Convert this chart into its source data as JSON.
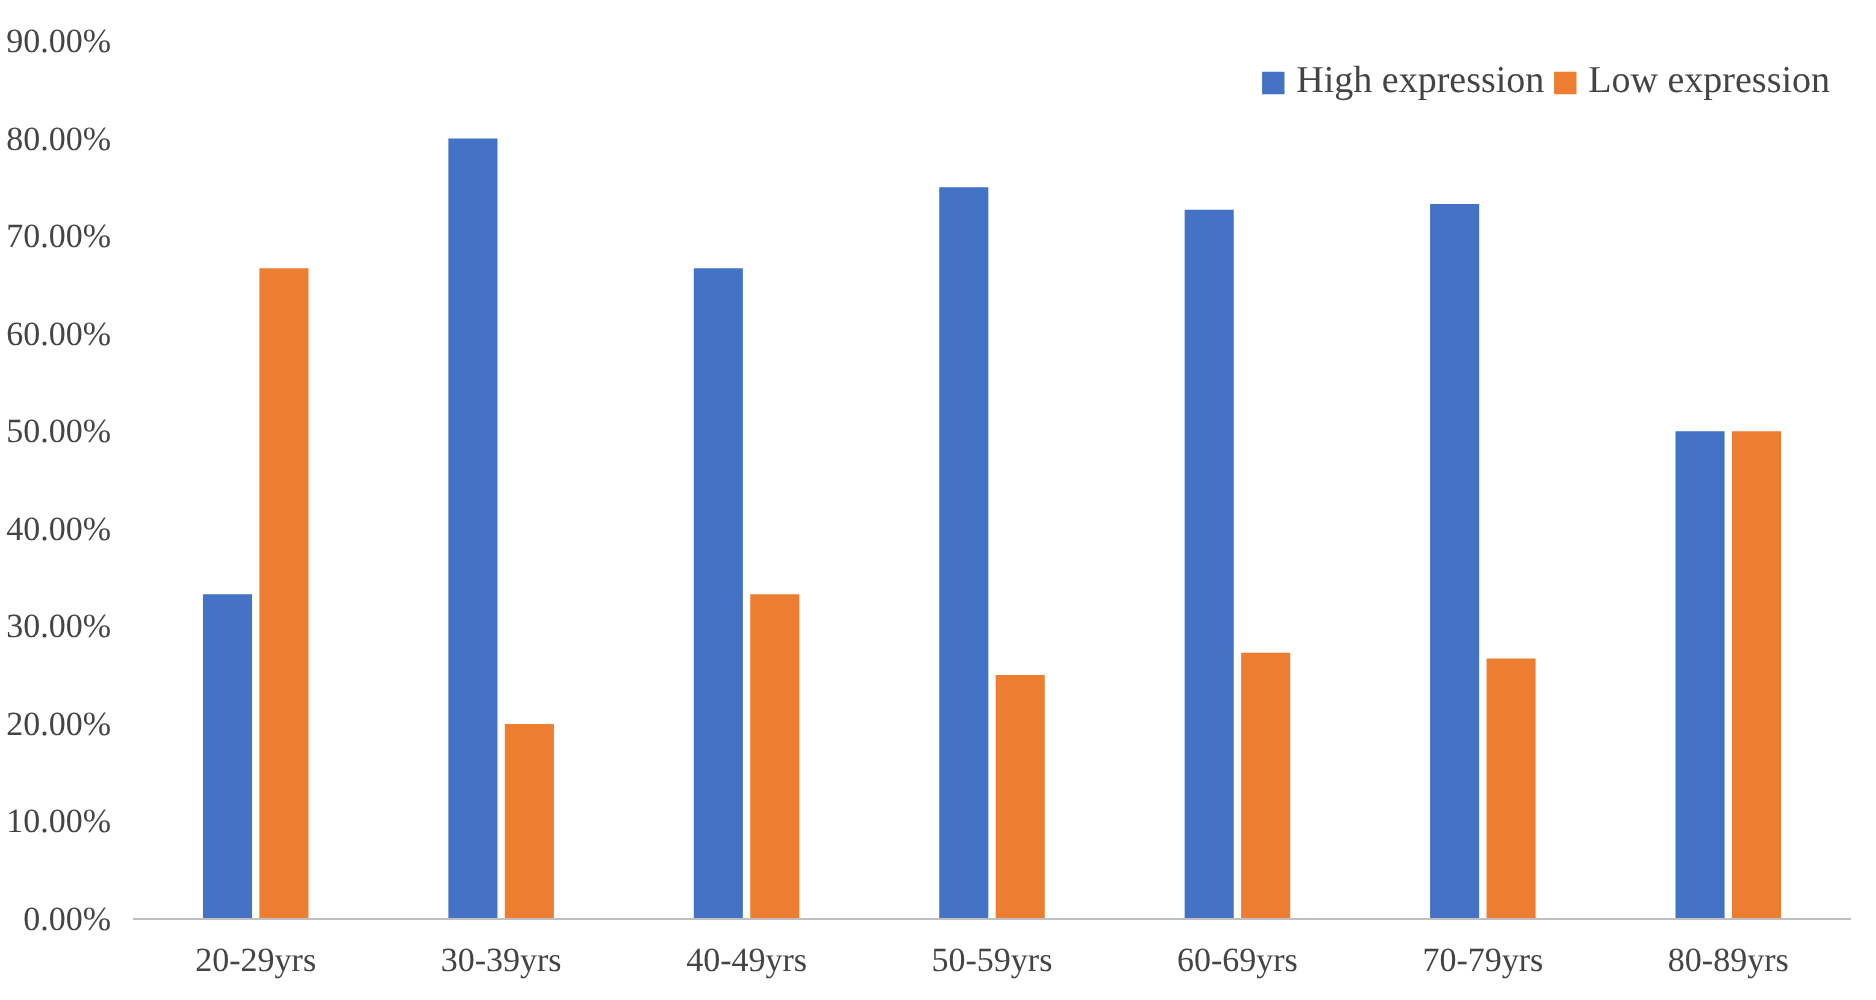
{
  "chart_data": {
    "type": "bar",
    "categories": [
      "20-29yrs",
      "30-39yrs",
      "40-49yrs",
      "50-59yrs",
      "60-69yrs",
      "70-79yrs",
      "80-89yrs"
    ],
    "series": [
      {
        "name": "High expression",
        "color": "#4472c4",
        "values": [
          33.3,
          80,
          66.7,
          75,
          72.7,
          73.3,
          50
        ]
      },
      {
        "name": "Low expression",
        "color": "#ed7d31",
        "values": [
          66.7,
          20,
          33.3,
          25,
          27.3,
          26.7,
          50
        ]
      }
    ],
    "ylim": [
      0,
      90
    ],
    "yticks": [
      {
        "value": 0,
        "label": "0.00%"
      },
      {
        "value": 10,
        "label": "10.00%"
      },
      {
        "value": 20,
        "label": "20.00%"
      },
      {
        "value": 30,
        "label": "30.00%"
      },
      {
        "value": 40,
        "label": "40.00%"
      },
      {
        "value": 50,
        "label": "50.00%"
      },
      {
        "value": 60,
        "label": "60.00%"
      },
      {
        "value": 70,
        "label": "70.00%"
      },
      {
        "value": 80,
        "label": "80.00%"
      },
      {
        "value": 90,
        "label": "90.00%"
      }
    ],
    "grid": false,
    "legend": "top right"
  }
}
